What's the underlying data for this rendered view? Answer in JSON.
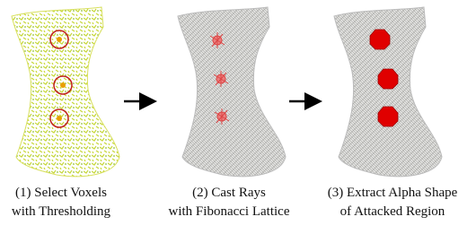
{
  "panels": [
    {
      "caption_lines": [
        "(1) Select Voxels",
        "with Thresholding"
      ]
    },
    {
      "caption_lines": [
        "(2) Cast Rays",
        "with Fibonacci Lattice"
      ]
    },
    {
      "caption_lines": [
        "(3) Extract Alpha Shape",
        "of Attacked Region"
      ]
    }
  ]
}
